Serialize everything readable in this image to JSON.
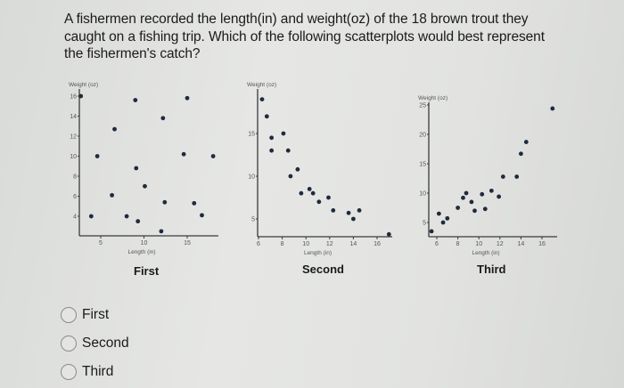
{
  "question": {
    "text": "A fishermen recorded the length(in) and weight(oz) of the 18 brown trout they caught on a fishing trip.  Which of the following scatterplots would best represent the fishermen's catch?"
  },
  "options": [
    {
      "label": "First",
      "selected": false
    },
    {
      "label": "Second",
      "selected": false
    },
    {
      "label": "Third",
      "selected": false
    }
  ],
  "plot_titles": [
    "First",
    "Second",
    "Third"
  ],
  "colors": {
    "point": "#1f2a3d",
    "axis": "#3a3a3a",
    "tick_text": "#555555"
  },
  "chart_data": [
    {
      "type": "scatter",
      "title": "First",
      "xlabel": "Length (in)",
      "ylabel": "Weight (oz)",
      "xticks": [
        5,
        10,
        15
      ],
      "yticks": [
        4,
        6,
        8,
        10,
        12,
        14,
        16
      ],
      "xlim": [
        2.5,
        19
      ],
      "ylim": [
        2,
        16.5
      ],
      "grid": false,
      "points": [
        {
          "x": 2.7,
          "y": 16
        },
        {
          "x": 9,
          "y": 15.6
        },
        {
          "x": 15,
          "y": 15.8
        },
        {
          "x": 12.2,
          "y": 13.8
        },
        {
          "x": 6.6,
          "y": 12.7
        },
        {
          "x": 4.6,
          "y": 10
        },
        {
          "x": 14.6,
          "y": 10.2
        },
        {
          "x": 18,
          "y": 10
        },
        {
          "x": 9.1,
          "y": 8.8
        },
        {
          "x": 10.1,
          "y": 7
        },
        {
          "x": 6.3,
          "y": 6.1
        },
        {
          "x": 12.4,
          "y": 5.4
        },
        {
          "x": 15.8,
          "y": 5.3
        },
        {
          "x": 3.9,
          "y": 4
        },
        {
          "x": 8,
          "y": 4
        },
        {
          "x": 9.3,
          "y": 3.5
        },
        {
          "x": 16.7,
          "y": 4.1
        },
        {
          "x": 12,
          "y": 2.5
        }
      ]
    },
    {
      "type": "scatter",
      "title": "Second",
      "xlabel": "Length (in)",
      "ylabel": "Weight (oz)",
      "xticks": [
        6,
        8,
        10,
        12,
        14,
        16
      ],
      "yticks": [
        5,
        10,
        15
      ],
      "xlim": [
        6,
        17.3
      ],
      "ylim": [
        2,
        19.5
      ],
      "grid": false,
      "points": [
        {
          "x": 6.3,
          "y": 19
        },
        {
          "x": 6.7,
          "y": 17
        },
        {
          "x": 7.1,
          "y": 14.5
        },
        {
          "x": 7.1,
          "y": 13
        },
        {
          "x": 8.1,
          "y": 15
        },
        {
          "x": 8.5,
          "y": 13
        },
        {
          "x": 8.7,
          "y": 10
        },
        {
          "x": 9.3,
          "y": 10.8
        },
        {
          "x": 9.6,
          "y": 8
        },
        {
          "x": 10.3,
          "y": 8.5
        },
        {
          "x": 10.6,
          "y": 8
        },
        {
          "x": 11.1,
          "y": 7
        },
        {
          "x": 11.9,
          "y": 7.5
        },
        {
          "x": 12.3,
          "y": 6
        },
        {
          "x": 13.6,
          "y": 5.7
        },
        {
          "x": 14,
          "y": 5
        },
        {
          "x": 14.5,
          "y": 6
        },
        {
          "x": 17,
          "y": 3.2
        }
      ]
    },
    {
      "type": "scatter",
      "title": "Third",
      "xlabel": "Length (in)",
      "ylabel": "Weight (oz)",
      "xticks": [
        6,
        8,
        10,
        12,
        14,
        16
      ],
      "yticks": [
        5,
        10,
        15,
        20,
        25
      ],
      "xlim": [
        5.2,
        17.5
      ],
      "ylim": [
        2.5,
        25.5
      ],
      "grid": false,
      "points": [
        {
          "x": 5.5,
          "y": 3.5
        },
        {
          "x": 6.2,
          "y": 6.5
        },
        {
          "x": 6.6,
          "y": 5
        },
        {
          "x": 7,
          "y": 5.7
        },
        {
          "x": 8,
          "y": 7.5
        },
        {
          "x": 8.5,
          "y": 9.2
        },
        {
          "x": 8.8,
          "y": 10
        },
        {
          "x": 9.3,
          "y": 8.5
        },
        {
          "x": 9.6,
          "y": 7
        },
        {
          "x": 10.3,
          "y": 9.8
        },
        {
          "x": 10.6,
          "y": 7.3
        },
        {
          "x": 11.2,
          "y": 10.4
        },
        {
          "x": 11.9,
          "y": 9.4
        },
        {
          "x": 12.3,
          "y": 12.8
        },
        {
          "x": 13.6,
          "y": 12.8
        },
        {
          "x": 14,
          "y": 16.7
        },
        {
          "x": 14.5,
          "y": 18.7
        },
        {
          "x": 17,
          "y": 24.4
        }
      ]
    }
  ]
}
